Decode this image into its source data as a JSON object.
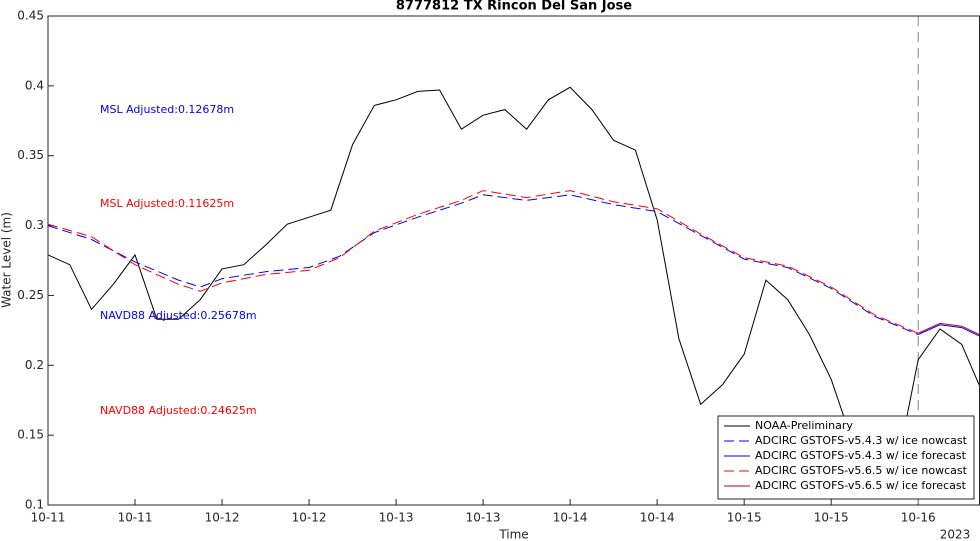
{
  "chart_data": {
    "type": "line",
    "title": "8777812 TX Rincon Del San Jose",
    "x_label": "Time",
    "y_label": "Water Level (m)",
    "x_annotation": "2023",
    "xlim": [
      0,
      10.71
    ],
    "ylim": [
      0.1,
      0.45
    ],
    "xticks": [
      {
        "value": 0,
        "label": "10-11"
      },
      {
        "value": 1,
        "label": "10-11"
      },
      {
        "value": 2,
        "label": "10-12"
      },
      {
        "value": 3,
        "label": "10-12"
      },
      {
        "value": 4,
        "label": "10-13"
      },
      {
        "value": 5,
        "label": "10-13"
      },
      {
        "value": 6,
        "label": "10-14"
      },
      {
        "value": 7,
        "label": "10-14"
      },
      {
        "value": 8,
        "label": "10-15"
      },
      {
        "value": 9,
        "label": "10-15"
      },
      {
        "value": 10,
        "label": "10-16"
      }
    ],
    "yticks": [
      0.1,
      0.15,
      0.2,
      0.25,
      0.3,
      0.35,
      0.4,
      0.45
    ],
    "vline": 10,
    "legend": "bottom-right",
    "annotations": [
      {
        "text": "MSL Adjusted:0.12678m",
        "color": "#0000ff"
      },
      {
        "text": "MSL Adjusted:0.11625m",
        "color": "#ff0000"
      },
      {
        "text": "NAVD88 Adjusted:0.25678m",
        "color": "#0000ff"
      },
      {
        "text": "NAVD88 Adjusted:0.24625m",
        "color": "#ff0000"
      }
    ],
    "series": [
      {
        "name": "NOAA-Preliminary",
        "color": "#000000",
        "dash": false,
        "x": [
          0,
          0.25,
          0.5,
          0.75,
          1,
          1.25,
          1.5,
          1.75,
          2,
          2.25,
          2.5,
          2.75,
          3,
          3.25,
          3.5,
          3.75,
          4,
          4.25,
          4.5,
          4.75,
          5,
          5.25,
          5.5,
          5.75,
          6,
          6.25,
          6.5,
          6.75,
          7,
          7.25,
          7.5,
          7.75,
          8,
          8.25,
          8.5,
          8.75,
          9,
          9.25,
          9.5,
          9.75,
          10,
          10.25,
          10.5,
          10.7
        ],
        "values": [
          0.279,
          0.272,
          0.24,
          0.258,
          0.279,
          0.233,
          0.233,
          0.247,
          0.269,
          0.272,
          0.286,
          0.301,
          0.306,
          0.311,
          0.358,
          0.386,
          0.39,
          0.396,
          0.397,
          0.369,
          0.379,
          0.383,
          0.369,
          0.39,
          0.399,
          0.383,
          0.361,
          0.354,
          0.304,
          0.219,
          0.172,
          0.186,
          0.208,
          0.261,
          0.247,
          0.222,
          0.19,
          0.144,
          0.119,
          0.126,
          0.204,
          0.226,
          0.215,
          0.186
        ]
      },
      {
        "name": "ADCIRC GSTOFS-v5.4.3 w/ ice nowcast",
        "color": "#0000ff",
        "dash": true,
        "x": [
          0,
          0.5,
          1,
          1.5,
          1.75,
          2,
          2.5,
          3,
          3.35,
          3.75,
          4.25,
          4.75,
          5,
          5.5,
          6,
          6.5,
          7,
          7.5,
          8,
          8.5,
          9,
          9.5,
          10
        ],
        "values": [
          0.3,
          0.29,
          0.274,
          0.261,
          0.256,
          0.262,
          0.267,
          0.27,
          0.278,
          0.295,
          0.306,
          0.316,
          0.322,
          0.318,
          0.322,
          0.315,
          0.31,
          0.293,
          0.276,
          0.27,
          0.255,
          0.235,
          0.222
        ]
      },
      {
        "name": "ADCIRC GSTOFS-v5.4.3 w/ ice forecast",
        "color": "#0000ff",
        "dash": false,
        "x": [
          10,
          10.25,
          10.5,
          10.7
        ],
        "values": [
          0.222,
          0.229,
          0.227,
          0.221
        ]
      },
      {
        "name": "ADCIRC GSTOFS-v5.6.5 w/ ice nowcast",
        "color": "#ff0000",
        "dash": true,
        "x": [
          0,
          0.5,
          1,
          1.5,
          1.75,
          2,
          2.5,
          3,
          3.35,
          3.75,
          4.25,
          4.75,
          5,
          5.5,
          6,
          6.5,
          7,
          7.5,
          8,
          8.5,
          9,
          9.5,
          10
        ],
        "values": [
          0.301,
          0.292,
          0.272,
          0.258,
          0.253,
          0.259,
          0.265,
          0.268,
          0.277,
          0.296,
          0.308,
          0.318,
          0.325,
          0.32,
          0.325,
          0.317,
          0.312,
          0.294,
          0.277,
          0.271,
          0.256,
          0.236,
          0.223
        ]
      },
      {
        "name": "ADCIRC GSTOFS-v5.6.5 w/ ice forecast",
        "color": "#c00000",
        "dash": false,
        "x": [
          10,
          10.25,
          10.5,
          10.7
        ],
        "values": [
          0.223,
          0.23,
          0.228,
          0.222
        ]
      }
    ]
  }
}
